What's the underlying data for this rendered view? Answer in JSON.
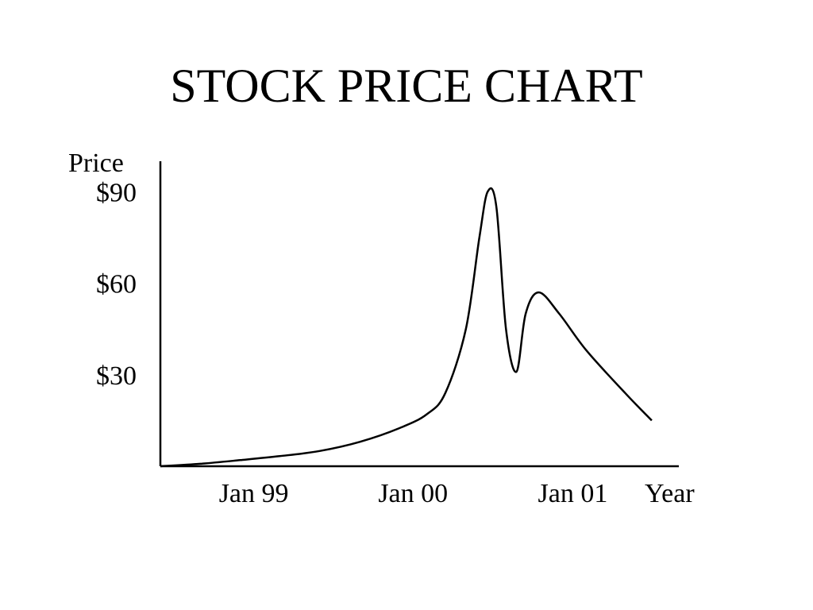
{
  "chart_data": {
    "type": "line",
    "title": "STOCK PRICE CHART",
    "xlabel": "Year",
    "ylabel": "Price",
    "x_ticks": [
      "Jan 99",
      "Jan 00",
      "Jan 01"
    ],
    "y_ticks": [
      "$30",
      "$60",
      "$90"
    ],
    "y_tick_values": [
      30,
      60,
      90
    ],
    "xlim": [
      "1998-06-01",
      "2001-09-01"
    ],
    "ylim": [
      0,
      100
    ],
    "grid": false,
    "legend": "none",
    "series": [
      {
        "color": "#000000",
        "points": [
          {
            "x": "1998-06-01",
            "y": 0
          },
          {
            "x": "1998-09-01",
            "y": 0.8
          },
          {
            "x": "1998-12-01",
            "y": 2
          },
          {
            "x": "1999-03-01",
            "y": 3.3
          },
          {
            "x": "1999-06-01",
            "y": 5
          },
          {
            "x": "1999-09-01",
            "y": 8
          },
          {
            "x": "1999-12-01",
            "y": 12.5
          },
          {
            "x": "2000-02-01",
            "y": 17
          },
          {
            "x": "2000-03-15",
            "y": 24
          },
          {
            "x": "2000-05-01",
            "y": 45
          },
          {
            "x": "2000-06-01",
            "y": 75
          },
          {
            "x": "2000-06-20",
            "y": 90
          },
          {
            "x": "2000-07-10",
            "y": 85
          },
          {
            "x": "2000-08-01",
            "y": 45
          },
          {
            "x": "2000-08-25",
            "y": 31
          },
          {
            "x": "2000-09-15",
            "y": 50
          },
          {
            "x": "2000-10-15",
            "y": 57
          },
          {
            "x": "2000-12-01",
            "y": 50
          },
          {
            "x": "2001-02-01",
            "y": 38
          },
          {
            "x": "2001-05-01",
            "y": 24
          },
          {
            "x": "2001-07-01",
            "y": 15
          }
        ]
      }
    ]
  }
}
